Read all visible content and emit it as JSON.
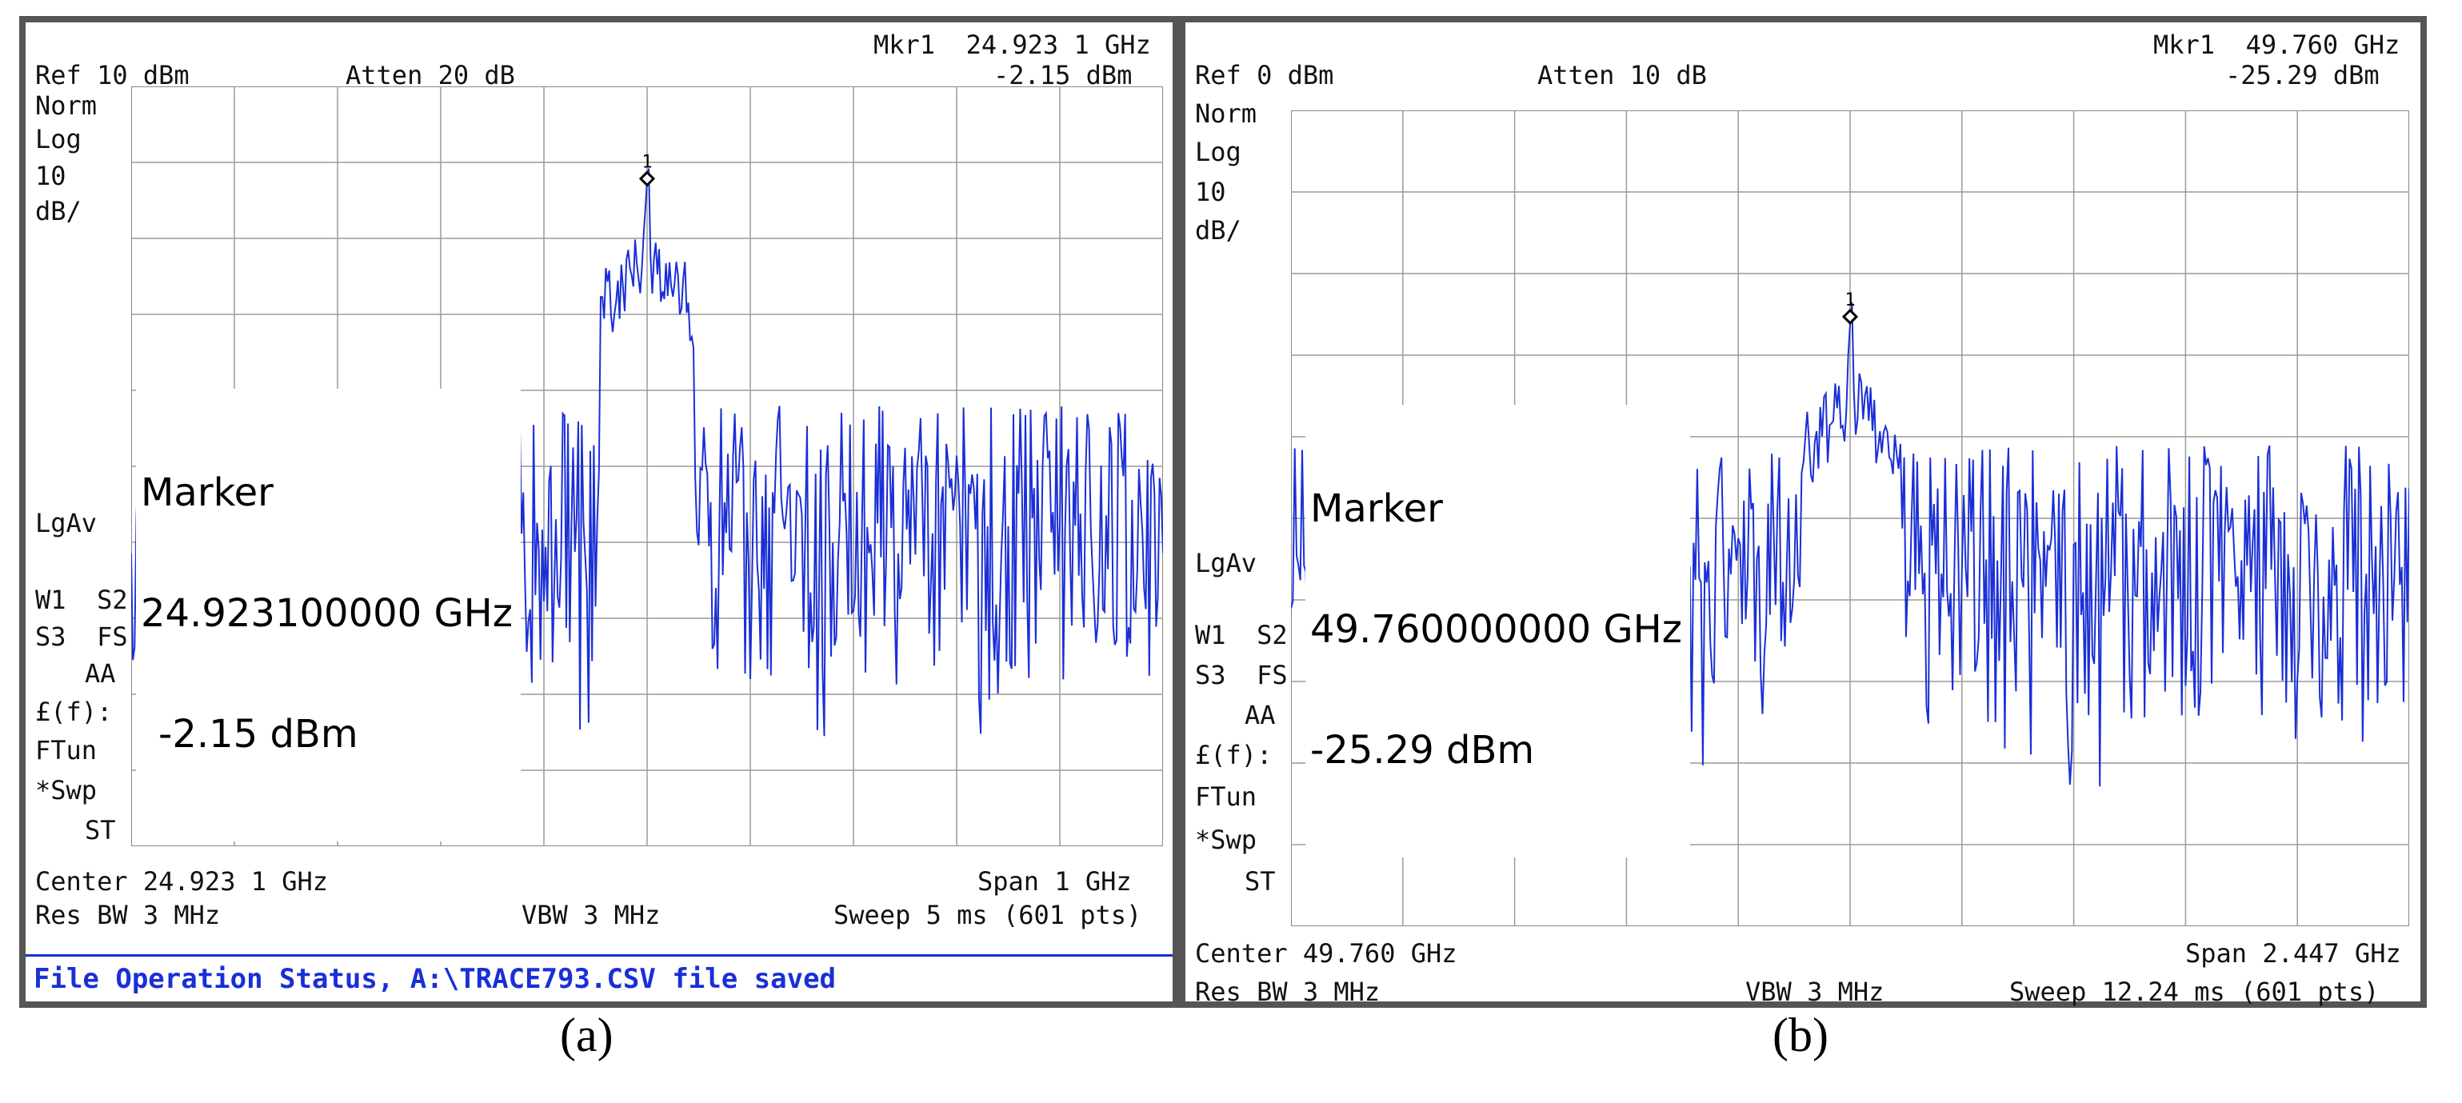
{
  "chart_data": [
    {
      "type": "line",
      "panel_label": "(a)",
      "marker_header": "Mkr1  24.923 1 GHz",
      "ref": "Ref 10 dBm",
      "atten": "Atten 20 dB",
      "marker_amp_header": "-2.15 dBm",
      "left_labels": [
        "Norm",
        "Log",
        "10",
        "dB/"
      ],
      "lgav": "LgAv",
      "status_labels": [
        "W1  S2",
        "S3  FS",
        "AA",
        "£(f):",
        "FTun",
        "*Swp",
        "ST"
      ],
      "marker_box": [
        "Marker",
        "24.923100000 GHz",
        "-2.15 dBm"
      ],
      "marker_number": "1",
      "center": "Center 24.923 1 GHz",
      "span": "Span 1 GHz",
      "res_bw": "Res BW 3 MHz",
      "vbw": "VBW 3 MHz",
      "sweep": "Sweep 5 ms (601 pts)",
      "status_bar": "File Operation Status, A:\\TRACE793.CSV file saved",
      "center_ghz": 24.9231,
      "span_ghz": 1,
      "ref_dbm": 10,
      "scale_db_per_div": 10,
      "ylim": [
        -90,
        10
      ],
      "marker_x_ghz": 24.9231,
      "marker_dbm": -2.15,
      "noise_floor_dbm": -43,
      "noise_peak_dbm": -35,
      "noise_dip_dbm": -68,
      "points": 601,
      "trace_color": "#1a2fd6"
    },
    {
      "type": "line",
      "panel_label": "(b)",
      "marker_header": "Mkr1  49.760 GHz",
      "ref": "Ref 0 dBm",
      "atten": "Atten 10 dB",
      "marker_amp_header": "-25.29 dBm",
      "left_labels": [
        "Norm",
        "Log",
        "10",
        "dB/"
      ],
      "lgav": "LgAv",
      "status_labels": [
        "W1  S2",
        "S3  FS",
        "AA",
        "£(f):",
        "FTun",
        "*Swp",
        "ST"
      ],
      "marker_box": [
        "Marker",
        "49.760000000 GHz",
        "-25.29 dBm"
      ],
      "marker_number": "1",
      "center": "Center 49.760 GHz",
      "span": "Span 2.447 GHz",
      "res_bw": "Res BW 3 MHz",
      "vbw": "VBW 3 MHz",
      "sweep": "Sweep 12.24 ms (601 pts)",
      "center_ghz": 49.76,
      "span_ghz": 2.447,
      "ref_dbm": 0,
      "scale_db_per_div": 10,
      "ylim": [
        -100,
        0
      ],
      "marker_x_ghz": 49.76,
      "marker_dbm": -25.29,
      "noise_floor_dbm": -52,
      "noise_peak_dbm": -44,
      "noise_dip_dbm": -75,
      "points": 601,
      "trace_color": "#1a2fd6"
    }
  ]
}
